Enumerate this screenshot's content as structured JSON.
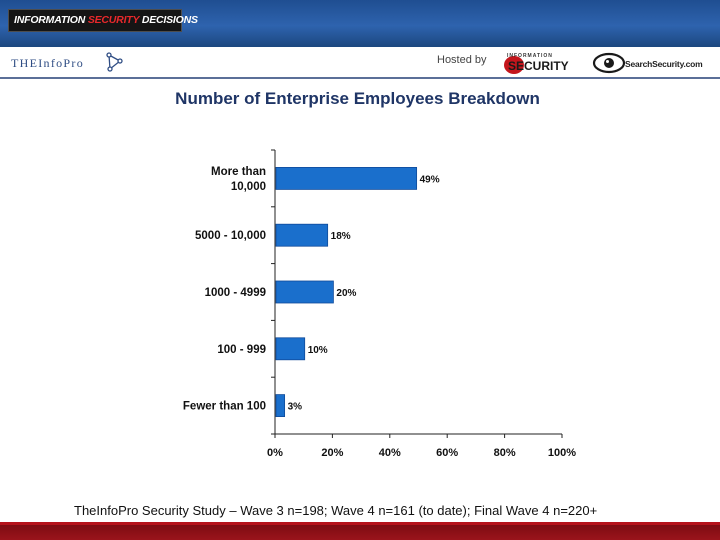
{
  "header": {
    "banner_lead": "INFORMATION ",
    "banner_accent": "SECURITY",
    "banner_tail": " DECISIONS",
    "brand_the": "The",
    "brand_infopro": "InfoPro",
    "hosted_by": "Hosted by",
    "security_small": "INFORMATION",
    "security_logo": "SECURITY",
    "searchsecurity": "SearchSecurity.com"
  },
  "colors": {
    "bar": "#1a6fcc",
    "bar_dark": "#0f4a99",
    "title": "#1f3566",
    "accent_red": "#b5121b"
  },
  "slide": {
    "title": "Number of Enterprise Employees Breakdown",
    "footnote": "TheInfoPro Security Study – Wave 3 n=198; Wave 4 n=161 (to date); Final Wave 4 n=220+"
  },
  "chart_data": {
    "type": "bar",
    "orientation": "horizontal",
    "categories": [
      [
        "More than",
        "10,000"
      ],
      [
        "5000 - 10,000"
      ],
      [
        "1000 - 4999"
      ],
      [
        "100 - 999"
      ],
      [
        "Fewer than 100"
      ]
    ],
    "values": [
      49,
      18,
      20,
      10,
      3
    ],
    "value_labels": [
      "49%",
      "18%",
      "20%",
      "10%",
      "3%"
    ],
    "xlim": [
      0,
      100
    ],
    "x_ticks": [
      0,
      20,
      40,
      60,
      80,
      100
    ],
    "x_tick_labels": [
      "0%",
      "20%",
      "40%",
      "60%",
      "80%",
      "100%"
    ],
    "grid": false,
    "legend": "none"
  }
}
